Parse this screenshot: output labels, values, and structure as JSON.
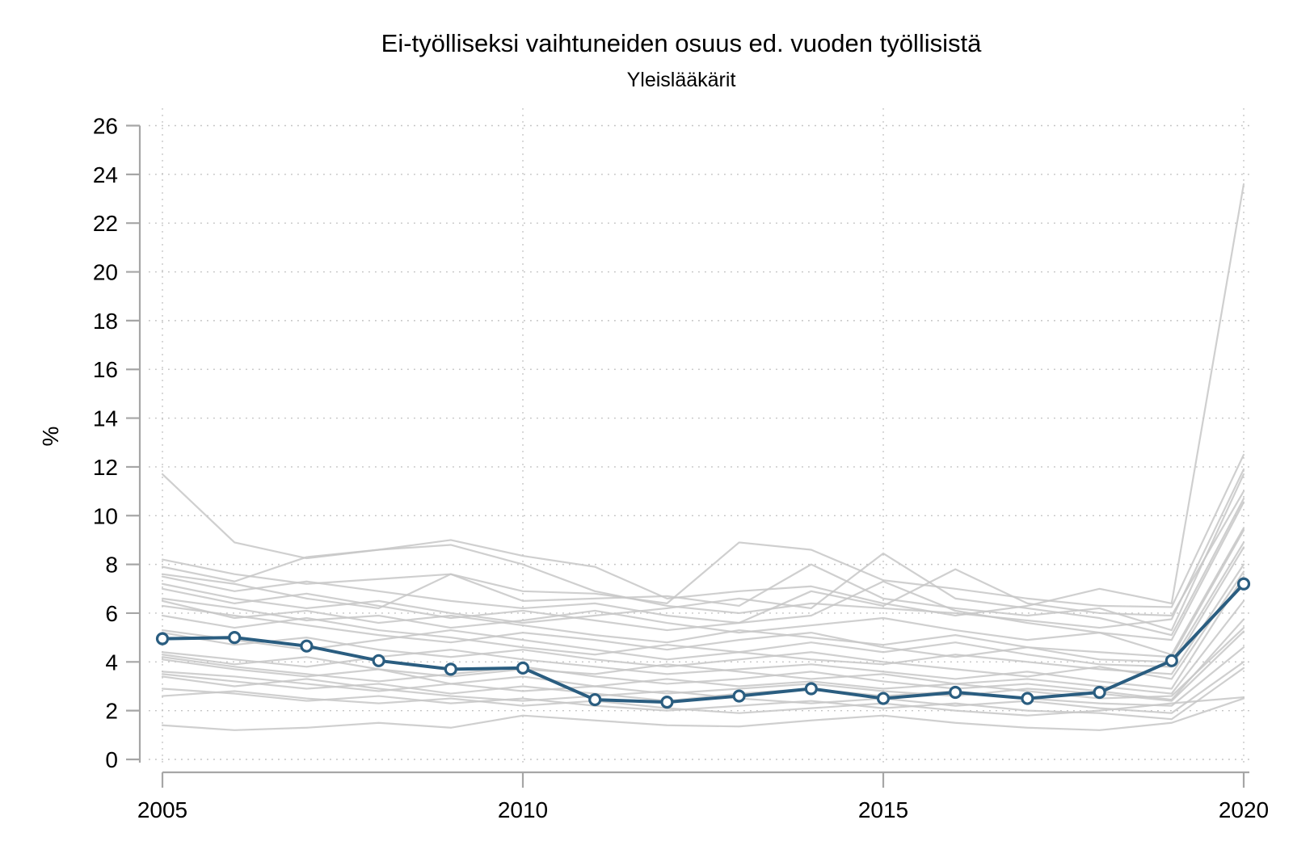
{
  "chart_data": {
    "type": "line",
    "title": "Ei-työlliseksi vaihtuneiden osuus ed. vuoden työllisistä",
    "subtitle": "Yleislääkärit",
    "ylabel": "%",
    "xlabel": "",
    "xlim": [
      2005,
      2020
    ],
    "ylim": [
      0,
      26
    ],
    "x": [
      2005,
      2006,
      2007,
      2008,
      2009,
      2010,
      2011,
      2012,
      2013,
      2014,
      2015,
      2016,
      2017,
      2018,
      2019,
      2020
    ],
    "x_ticks": [
      2005,
      2010,
      2015,
      2020
    ],
    "x_tick_labels": [
      "2005",
      "2010",
      "2015",
      "2020"
    ],
    "y_ticks": [
      0,
      2,
      4,
      6,
      8,
      10,
      12,
      14,
      16,
      18,
      20,
      22,
      24,
      26
    ],
    "y_tick_labels": [
      "0",
      "2",
      "4",
      "6",
      "8",
      "10",
      "12",
      "14",
      "16",
      "18",
      "20",
      "22",
      "24",
      "26"
    ],
    "grid": "dotted both axes",
    "legend": "none",
    "colors": {
      "highlight_line": "#2a5d80",
      "marker_fill": "#ffffff",
      "background_lines": "#c7c7c7",
      "axis": "#a6a6a6",
      "grid": "#c0c0c0",
      "text": "#000000"
    },
    "highlight_series": {
      "name": "Yleislääkärit",
      "marker": "open-circle",
      "values": [
        4.95,
        5.0,
        4.65,
        4.05,
        3.7,
        3.75,
        2.45,
        2.35,
        2.6,
        2.9,
        2.5,
        2.75,
        2.5,
        2.75,
        4.05,
        7.2
      ]
    },
    "background_series": [
      {
        "values": [
          11.7,
          8.9,
          8.25,
          8.6,
          9.0,
          8.35,
          7.9,
          6.6,
          6.9,
          7.1,
          6.4,
          5.9,
          6.3,
          7.0,
          6.4,
          23.6
        ]
      },
      {
        "values": [
          8.2,
          7.6,
          7.2,
          7.4,
          7.6,
          6.9,
          6.8,
          6.4,
          8.9,
          8.6,
          7.35,
          7.0,
          6.6,
          6.3,
          6.25,
          12.5
        ]
      },
      {
        "values": [
          7.9,
          7.3,
          8.3,
          8.6,
          8.8,
          8.0,
          6.9,
          6.3,
          6.0,
          6.4,
          6.2,
          6.0,
          5.7,
          5.4,
          5.75,
          11.9
        ]
      },
      {
        "values": [
          7.6,
          7.2,
          6.6,
          6.2,
          7.6,
          6.5,
          6.6,
          6.7,
          6.3,
          8.0,
          6.6,
          6.2,
          5.9,
          6.2,
          5.3,
          11.7
        ]
      },
      {
        "values": [
          7.5,
          6.9,
          7.3,
          6.9,
          6.5,
          6.2,
          6.4,
          5.9,
          5.6,
          6.9,
          6.3,
          7.8,
          6.4,
          6.0,
          5.9,
          11.0
        ]
      },
      {
        "values": [
          7.2,
          6.6,
          6.2,
          6.5,
          6.0,
          5.6,
          5.9,
          6.2,
          6.6,
          6.2,
          8.45,
          6.6,
          6.2,
          5.8,
          5.1,
          10.7
        ]
      },
      {
        "values": [
          7.0,
          6.4,
          6.8,
          6.3,
          5.8,
          6.1,
          5.7,
          5.3,
          5.6,
          5.9,
          7.3,
          6.1,
          5.6,
          5.2,
          4.9,
          10.55
        ]
      },
      {
        "values": [
          6.6,
          6.2,
          5.7,
          5.9,
          5.4,
          5.7,
          6.1,
          5.6,
          5.2,
          5.5,
          5.8,
          5.3,
          4.9,
          5.2,
          4.3,
          9.5
        ]
      },
      {
        "values": [
          6.5,
          5.8,
          6.1,
          5.6,
          5.9,
          5.5,
          5.1,
          4.8,
          5.3,
          5.0,
          4.7,
          5.1,
          4.6,
          4.4,
          4.2,
          9.4
        ]
      },
      {
        "values": [
          6.3,
          5.9,
          5.5,
          5.1,
          4.8,
          5.2,
          4.9,
          4.5,
          4.9,
          5.2,
          4.6,
          4.2,
          4.6,
          4.1,
          4.0,
          8.9
        ]
      },
      {
        "values": [
          5.9,
          5.4,
          5.8,
          5.3,
          5.0,
          4.6,
          4.3,
          4.7,
          4.4,
          4.8,
          4.4,
          4.8,
          4.3,
          3.9,
          3.8,
          8.7
        ]
      },
      {
        "values": [
          5.3,
          4.9,
          4.5,
          4.9,
          5.3,
          4.9,
          4.5,
          4.1,
          4.4,
          4.1,
          3.9,
          4.3,
          4.0,
          3.7,
          3.5,
          8.0
        ]
      },
      {
        "values": [
          5.2,
          4.7,
          5.0,
          4.5,
          4.2,
          4.5,
          4.1,
          3.8,
          4.1,
          4.4,
          4.0,
          3.7,
          3.4,
          3.8,
          3.3,
          7.7
        ]
      },
      {
        "values": [
          4.4,
          4.1,
          3.8,
          4.2,
          4.5,
          4.1,
          3.8,
          3.5,
          3.7,
          3.9,
          3.6,
          3.3,
          3.6,
          3.2,
          2.9,
          7.5
        ]
      },
      {
        "values": [
          4.3,
          3.9,
          4.2,
          3.7,
          3.4,
          3.7,
          3.5,
          3.9,
          3.6,
          3.3,
          3.5,
          3.1,
          3.3,
          3.0,
          2.7,
          6.5
        ]
      },
      {
        "values": [
          4.2,
          3.8,
          3.5,
          3.2,
          3.5,
          3.8,
          3.4,
          3.1,
          3.3,
          3.6,
          3.2,
          2.9,
          3.1,
          2.8,
          2.45,
          5.75
        ]
      },
      {
        "values": [
          4.1,
          3.7,
          3.4,
          3.7,
          3.1,
          3.4,
          3.0,
          3.3,
          3.0,
          3.2,
          2.9,
          3.1,
          2.8,
          2.5,
          2.6,
          5.4
        ]
      },
      {
        "values": [
          3.6,
          3.4,
          3.1,
          2.8,
          3.1,
          2.8,
          3.0,
          2.7,
          2.9,
          3.1,
          2.8,
          2.6,
          2.9,
          2.7,
          2.4,
          5.25
        ]
      },
      {
        "values": [
          3.5,
          3.2,
          2.9,
          3.1,
          2.7,
          3.0,
          2.7,
          2.4,
          2.7,
          2.9,
          2.6,
          2.8,
          2.5,
          2.3,
          2.2,
          4.6
        ]
      },
      {
        "values": [
          3.4,
          3.0,
          3.3,
          2.9,
          2.6,
          2.4,
          2.6,
          2.8,
          2.5,
          2.3,
          2.5,
          2.2,
          2.4,
          2.1,
          1.9,
          4.0
        ]
      },
      {
        "values": [
          2.9,
          2.7,
          2.4,
          2.6,
          2.3,
          2.5,
          2.2,
          2.0,
          2.2,
          2.4,
          2.1,
          2.3,
          2.0,
          1.9,
          1.65,
          3.75
        ]
      },
      {
        "values": [
          2.6,
          2.8,
          2.5,
          2.3,
          2.5,
          2.2,
          2.4,
          2.1,
          1.9,
          2.1,
          2.3,
          2.0,
          1.8,
          2.0,
          2.3,
          2.55
        ]
      },
      {
        "values": [
          1.4,
          1.2,
          1.3,
          1.5,
          1.3,
          1.8,
          1.6,
          1.4,
          1.35,
          1.6,
          1.8,
          1.5,
          1.3,
          1.2,
          1.5,
          2.5
        ]
      }
    ]
  }
}
